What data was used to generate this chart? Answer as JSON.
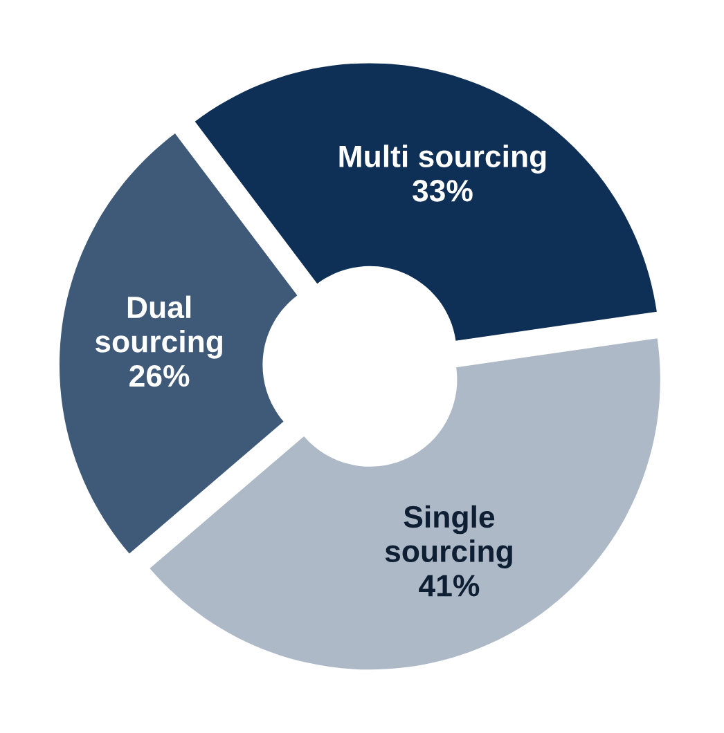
{
  "chart_data": {
    "type": "donut",
    "categories": [
      "Multi sourcing",
      "Single sourcing",
      "Dual sourcing"
    ],
    "values": [
      33,
      41,
      26
    ],
    "colors": [
      "#0e2f56",
      "#adb9c7",
      "#3f5a78"
    ],
    "value_labels": [
      "33%",
      "41%",
      "26%"
    ],
    "legend": false
  }
}
